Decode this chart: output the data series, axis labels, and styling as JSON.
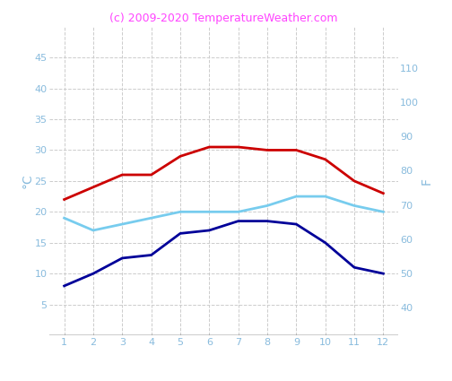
{
  "months": [
    1,
    2,
    3,
    4,
    5,
    6,
    7,
    8,
    9,
    10,
    11,
    12
  ],
  "red_line": [
    22,
    24,
    26,
    26,
    29,
    30.5,
    30.5,
    30,
    30,
    28.5,
    25,
    23
  ],
  "cyan_line": [
    19,
    17,
    18,
    19,
    20,
    20,
    20,
    21,
    22.5,
    22.5,
    21,
    20
  ],
  "blue_line": [
    8,
    10,
    12.5,
    13,
    16.5,
    17,
    18.5,
    18.5,
    18,
    15,
    11,
    10
  ],
  "red_color": "#cc0000",
  "cyan_color": "#77ccee",
  "blue_color": "#000099",
  "title": "(c) 2009-2020 TemperatureWeather.com",
  "title_color": "#ff44ff",
  "ylabel_left": "°C",
  "ylabel_right": "F",
  "ylim_left": [
    0,
    50
  ],
  "ylim_right": [
    32,
    122
  ],
  "yticks_left": [
    5,
    10,
    15,
    20,
    25,
    30,
    35,
    40,
    45
  ],
  "yticks_right": [
    40,
    50,
    60,
    70,
    80,
    90,
    100,
    110
  ],
  "xticks": [
    1,
    2,
    3,
    4,
    5,
    6,
    7,
    8,
    9,
    10,
    11,
    12
  ],
  "grid_color": "#cccccc",
  "background_color": "#ffffff",
  "tick_color": "#88bbdd",
  "line_width": 2.0,
  "figsize": [
    5.04,
    4.25
  ],
  "dpi": 100
}
